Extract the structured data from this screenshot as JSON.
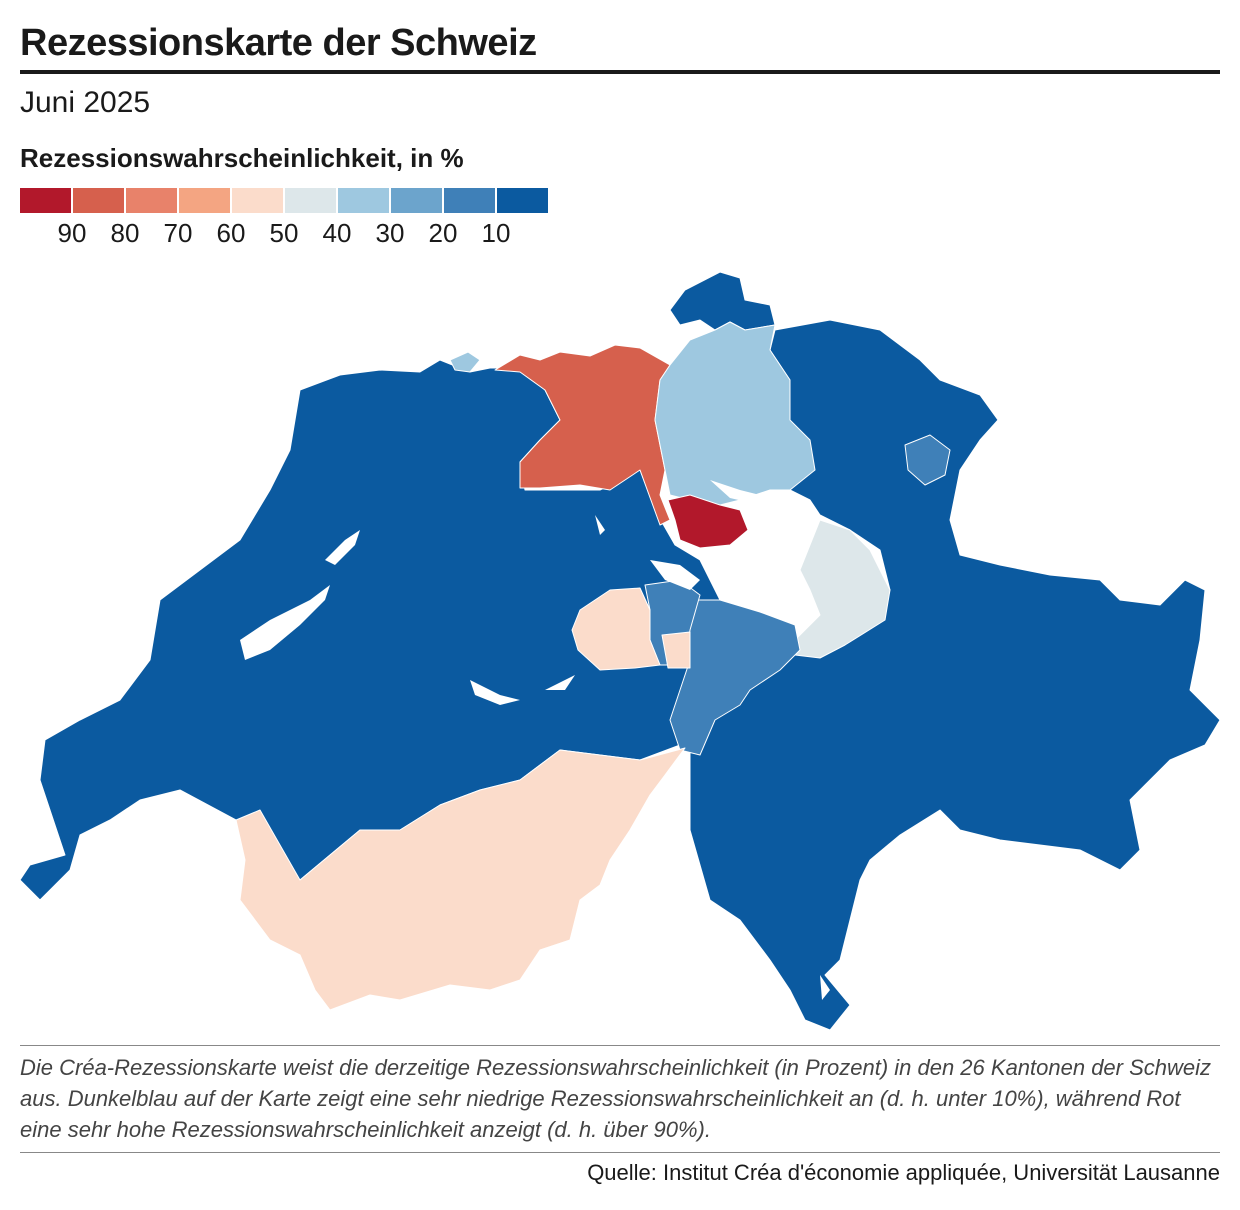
{
  "title": "Rezessionskarte der Schweiz",
  "subtitle": "Juni 2025",
  "legend": {
    "title": "Rezessionswahrscheinlichkeit, in %",
    "colors": [
      "#b2182b",
      "#d6604d",
      "#e8826a",
      "#f4a582",
      "#fbdccb",
      "#dde7ea",
      "#9ec8e0",
      "#6ca4cc",
      "#3f80b8",
      "#0b5aa0"
    ],
    "labels": [
      "90",
      "80",
      "70",
      "60",
      "50",
      "40",
      "30",
      "20",
      "10"
    ]
  },
  "map": {
    "colors": {
      "very_low": "#0b5aa0",
      "low": "#3f80b8",
      "lowish": "#9ec8e0",
      "neutral": "#dde7ea",
      "mid": "#fbdccb",
      "high": "#d6604d",
      "very_high": "#b2182b"
    }
  },
  "note": "Die Créa-Rezessionskarte weist die derzeitige Rezessionswahrscheinlichkeit (in Prozent) in den 26 Kantonen der Schweiz aus. Dunkelblau auf der Karte zeigt eine sehr niedrige Rezessionswahrscheinlichkeit an (d. h. unter 10%), während Rot eine sehr hohe Rezessionswahrscheinlichkeit anzeigt (d. h. über 90%).",
  "source": "Quelle: Institut Créa d'économie appliquée, Universität Lausanne"
}
